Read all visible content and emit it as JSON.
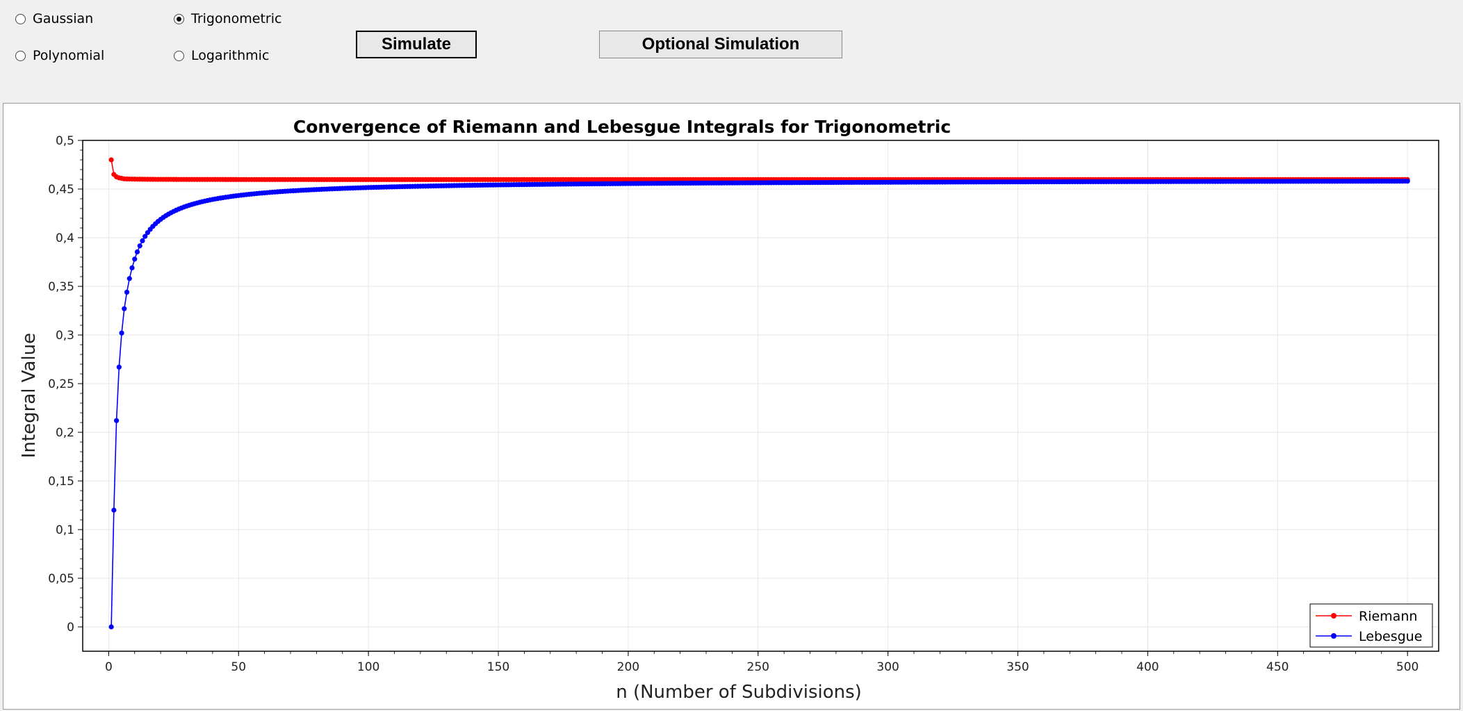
{
  "functions": {
    "gaussian": {
      "label": "Gaussian",
      "checked": false
    },
    "trigonometric": {
      "label": "Trigonometric",
      "checked": true
    },
    "polynomial": {
      "label": "Polynomial",
      "checked": false
    },
    "logarithmic": {
      "label": "Logarithmic",
      "checked": false
    }
  },
  "buttons": {
    "simulate": "Simulate",
    "optional_simulation": "Optional Simulation"
  },
  "chart_data": {
    "type": "line",
    "title": "Convergence of Riemann and Lebesgue Integrals for Trigonometric",
    "xlabel": "n (Number of Subdivisions)",
    "ylabel": "Integral Value",
    "xlim": [
      -10,
      512
    ],
    "ylim": [
      -0.025,
      0.5
    ],
    "xticks": [
      0,
      50,
      100,
      150,
      200,
      250,
      300,
      350,
      400,
      450,
      500
    ],
    "yticks": [
      "0",
      "0,05",
      "0,1",
      "0,15",
      "0,2",
      "0,25",
      "0,3",
      "0,35",
      "0,4",
      "0,45",
      "0,5"
    ],
    "grid": true,
    "legend": {
      "position": "bottom-right",
      "entries": [
        "Riemann",
        "Lebesgue"
      ]
    },
    "series": [
      {
        "name": "Riemann",
        "color": "#ff0000",
        "x_range": [
          1,
          500
        ],
        "limit": 0.4597,
        "first_values": [
          0.48,
          0.465,
          0.4625,
          0.4615,
          0.461,
          0.4605
        ]
      },
      {
        "name": "Lebesgue",
        "color": "#0000ff",
        "x_range": [
          1,
          500
        ],
        "limit": 0.4597,
        "first_values": [
          0.0,
          0.12,
          0.212,
          0.267,
          0.302,
          0.327,
          0.344,
          0.358,
          0.369,
          0.378
        ]
      }
    ]
  }
}
